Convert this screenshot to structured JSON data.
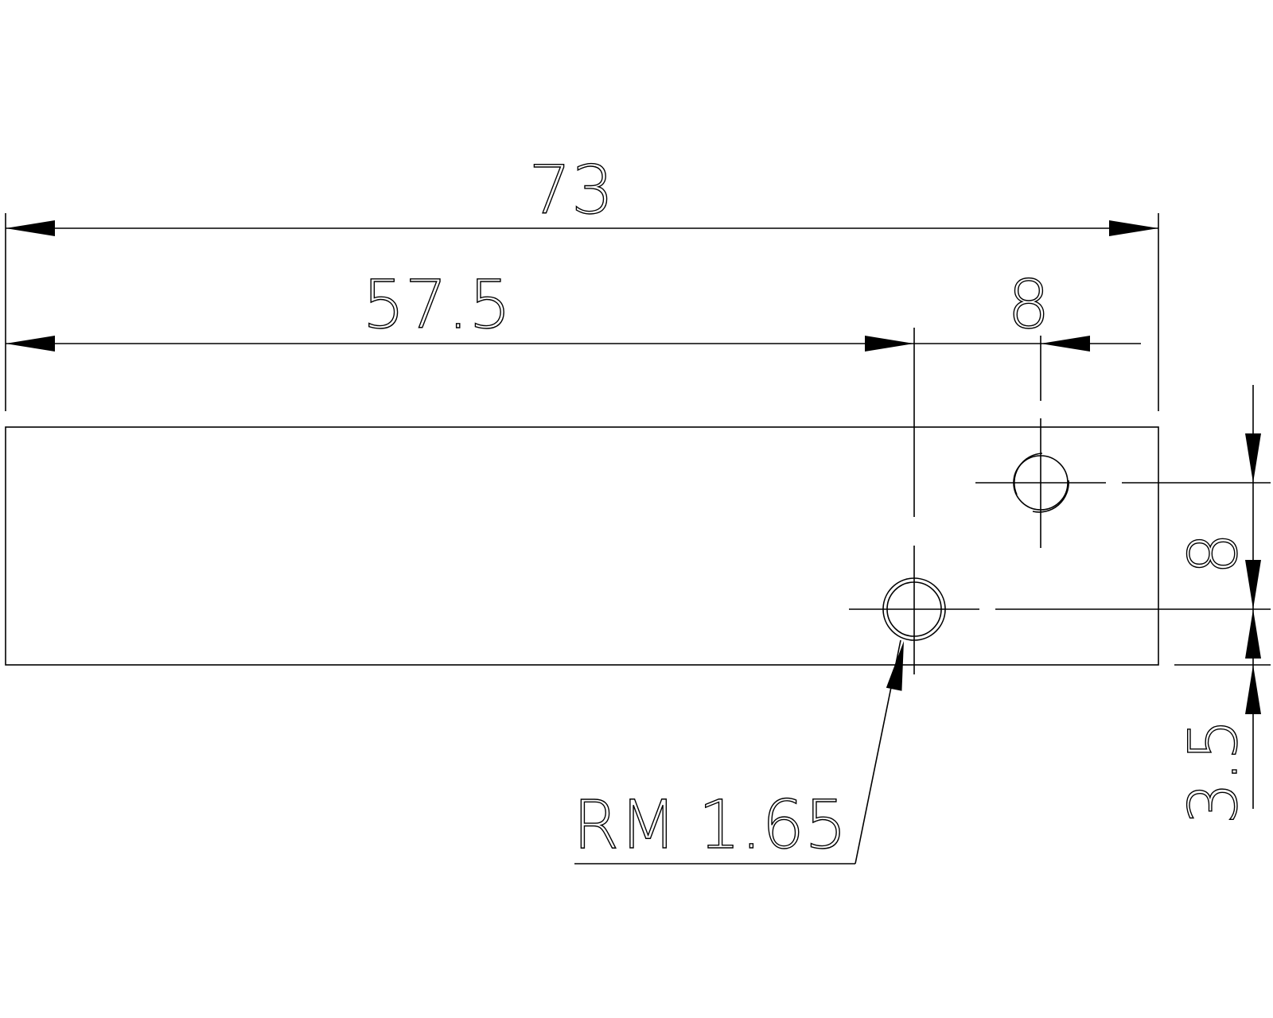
{
  "drawing": {
    "stroke_color": "#000000",
    "background_color": "#ffffff",
    "overall_length": "73",
    "hole_x_offset": "57.5",
    "hole_spacing_x": "8",
    "hole_spacing_y": "8",
    "hole_edge_offset": "3.5",
    "hole_callout": "RM 1.65"
  }
}
